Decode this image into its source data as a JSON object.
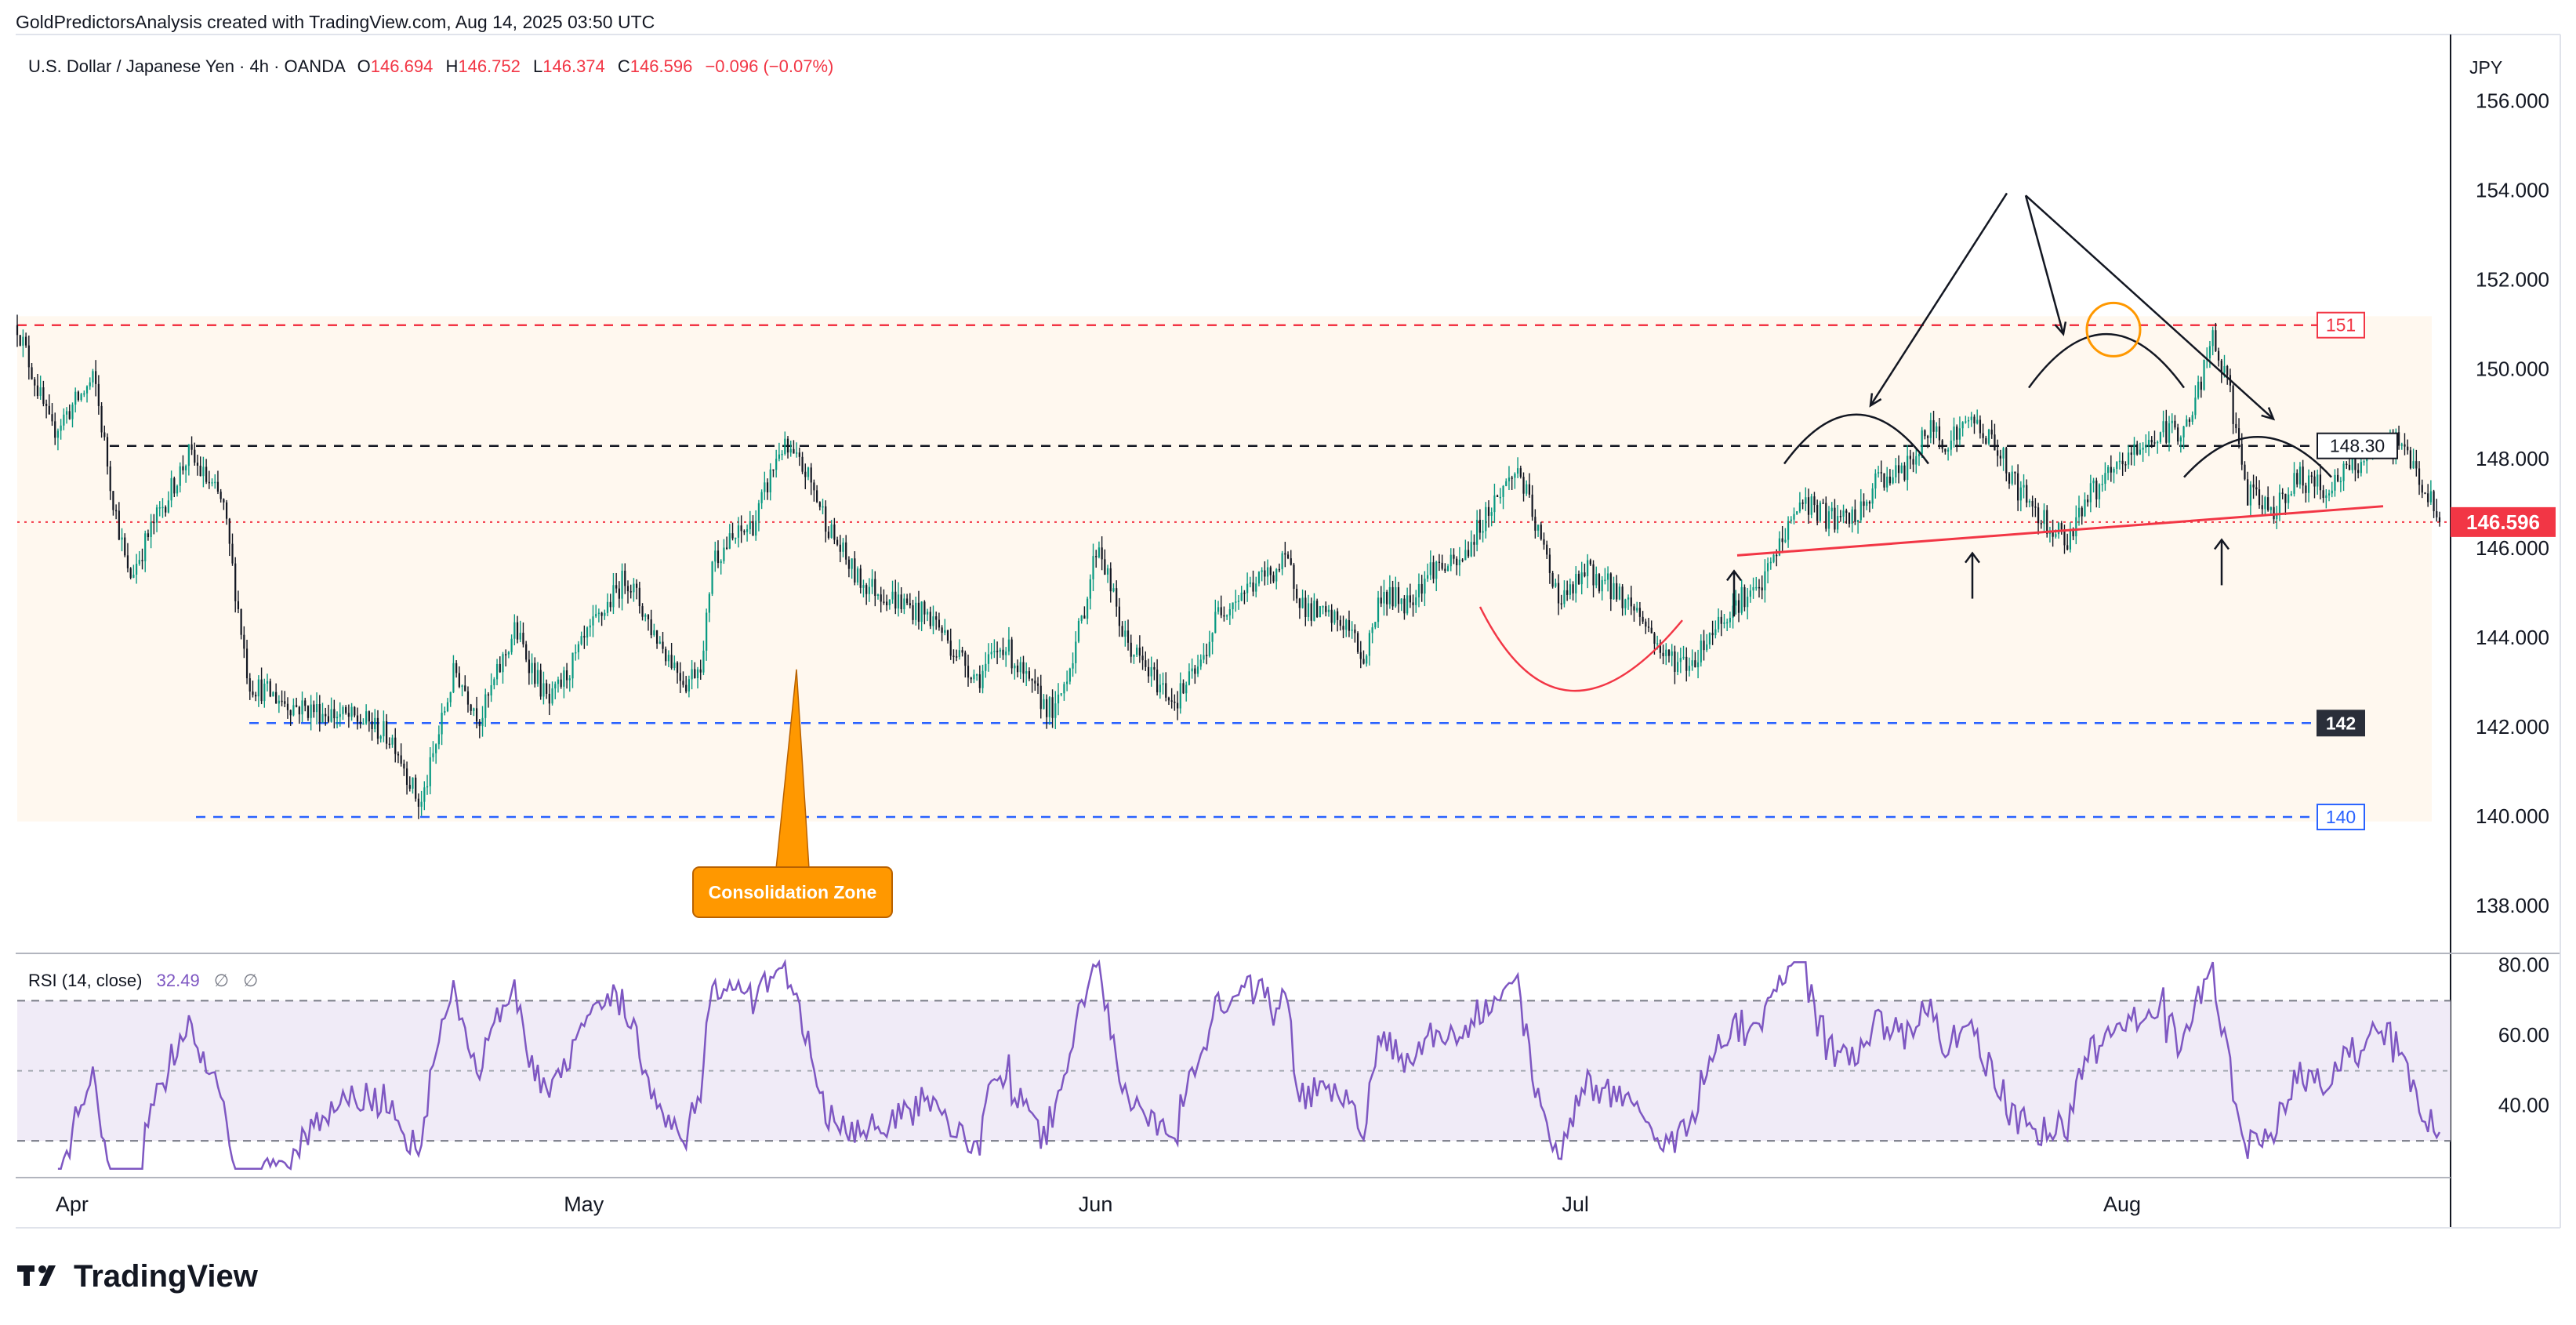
{
  "header": {
    "attribution": "GoldPredictorsAnalysis created with TradingView.com, Aug 14, 2025 03:50 UTC"
  },
  "legend": {
    "symbol": "U.S. Dollar / Japanese Yen · 4h · OANDA",
    "o_label": "O",
    "o_value": "146.694",
    "h_label": "H",
    "h_value": "146.752",
    "l_label": "L",
    "l_value": "146.374",
    "c_label": "C",
    "c_value": "146.596",
    "change": "−0.096 (−0.07%)"
  },
  "currency_label": "JPY",
  "price_axis": {
    "ticks": [
      "156.000",
      "154.000",
      "152.000",
      "150.000",
      "148.000",
      "146.000",
      "144.000",
      "142.000",
      "140.000",
      "138.000"
    ],
    "tick_values": [
      156,
      154,
      152,
      150,
      148,
      146,
      144,
      142,
      140,
      138
    ],
    "range": [
      136.95,
      157.5
    ]
  },
  "level_badges": [
    {
      "label": "151",
      "value": 151.0,
      "style": "red-outline"
    },
    {
      "label": "148.30",
      "value": 148.3,
      "style": "dark-outline"
    },
    {
      "label": "146.596",
      "value": 146.596,
      "style": "red-fill"
    },
    {
      "label": "142",
      "value": 142.1,
      "style": "dark-fill"
    },
    {
      "label": "140",
      "value": 140.0,
      "style": "blue-outline"
    }
  ],
  "annotation": {
    "consolidation_label": "Consolidation Zone"
  },
  "time_axis": {
    "labels": [
      "Apr",
      "May",
      "Jun",
      "Jul",
      "Aug"
    ],
    "bar_index": [
      4,
      180,
      356,
      521,
      709
    ]
  },
  "rsi": {
    "title": "RSI (14, close)",
    "value": "32.49",
    "extra1": "∅",
    "extra2": "∅",
    "ticks": [
      "80.00",
      "60.00",
      "40.00"
    ],
    "tick_values": [
      80,
      60,
      40
    ],
    "range": [
      19.5,
      83.5
    ],
    "band": [
      30,
      70
    ],
    "mid": 50
  },
  "brand": {
    "name": "TradingView"
  },
  "colors": {
    "up": "#089981",
    "down": "#131722",
    "red_level": "#f23645",
    "blue_level": "#2962ff",
    "rsi_line": "#7e57c2",
    "zone": "#fff8ef",
    "orange": "#ff9800"
  },
  "chart_data": {
    "type": "candlestick",
    "title": "U.S. Dollar / Japanese Yen · 4h · OANDA",
    "timeframe": "4h",
    "bars_total": 834,
    "ohlc_last": {
      "open": 146.694,
      "high": 146.752,
      "low": 146.374,
      "close": 146.596,
      "change": -0.096,
      "change_pct": -0.07
    },
    "close_path": [
      [
        0,
        151.0
      ],
      [
        20,
        148.6
      ],
      [
        45,
        149.8
      ],
      [
        55,
        147.3
      ],
      [
        65,
        145.3
      ],
      [
        80,
        146.6
      ],
      [
        100,
        148.1
      ],
      [
        120,
        147.0
      ],
      [
        135,
        143.0
      ],
      [
        160,
        142.5
      ],
      [
        185,
        142.3
      ],
      [
        205,
        142.1
      ],
      [
        220,
        141.7
      ],
      [
        235,
        140.2
      ],
      [
        255,
        143.3
      ],
      [
        270,
        142.2
      ],
      [
        290,
        144.2
      ],
      [
        310,
        142.5
      ],
      [
        335,
        144.2
      ],
      [
        355,
        145.4
      ],
      [
        370,
        144.2
      ],
      [
        390,
        143.0
      ],
      [
        400,
        143.6
      ],
      [
        405,
        145.8
      ],
      [
        430,
        146.6
      ],
      [
        445,
        148.3
      ],
      [
        460,
        147.7
      ],
      [
        475,
        146.3
      ],
      [
        490,
        145.3
      ],
      [
        505,
        145.0
      ],
      [
        520,
        144.7
      ],
      [
        535,
        144.4
      ],
      [
        545,
        143.8
      ],
      [
        560,
        143.1
      ],
      [
        575,
        143.9
      ],
      [
        590,
        142.9
      ],
      [
        605,
        142.3
      ],
      [
        620,
        144.3
      ],
      [
        630,
        146.2
      ],
      [
        645,
        144.0
      ],
      [
        660,
        143.2
      ],
      [
        675,
        142.6
      ],
      [
        690,
        143.4
      ],
      [
        700,
        144.6
      ],
      [
        720,
        145.2
      ],
      [
        740,
        145.7
      ],
      [
        750,
        144.7
      ],
      [
        760,
        144.5
      ],
      [
        775,
        144.3
      ],
      [
        785,
        143.5
      ],
      [
        795,
        145.0
      ],
      [
        810,
        144.8
      ],
      [
        825,
        145.6
      ],
      [
        840,
        145.6
      ],
      [
        855,
        146.7
      ],
      [
        865,
        147.3
      ],
      [
        875,
        147.8
      ],
      [
        885,
        146.5
      ],
      [
        900,
        144.8
      ],
      [
        915,
        145.5
      ],
      [
        930,
        145.1
      ],
      [
        945,
        144.6
      ],
      [
        960,
        143.6
      ],
      [
        975,
        143.4
      ],
      [
        990,
        144.3
      ],
      [
        1005,
        144.9
      ],
      [
        1015,
        145.0
      ],
      [
        1025,
        145.9
      ],
      [
        1040,
        147.1
      ],
      [
        1055,
        146.7
      ],
      [
        1065,
        146.6
      ],
      [
        1075,
        146.8
      ],
      [
        1085,
        147.6
      ],
      [
        1100,
        147.7
      ],
      [
        1115,
        148.7
      ],
      [
        1125,
        148.4
      ],
      [
        1140,
        148.9
      ],
      [
        1155,
        148.2
      ],
      [
        1165,
        147.4
      ],
      [
        1180,
        146.7
      ],
      [
        1195,
        146.2
      ],
      [
        1205,
        147.1
      ],
      [
        1220,
        147.6
      ],
      [
        1235,
        148.2
      ],
      [
        1250,
        148.6
      ],
      [
        1265,
        148.7
      ],
      [
        1280,
        150.7
      ],
      [
        1290,
        149.4
      ],
      [
        1300,
        147.2
      ],
      [
        1315,
        146.9
      ],
      [
        1330,
        147.6
      ],
      [
        1345,
        147.3
      ],
      [
        1360,
        147.8
      ],
      [
        1375,
        148.2
      ],
      [
        1390,
        148.4
      ],
      [
        1405,
        147.2
      ],
      [
        1412,
        146.6
      ]
    ],
    "levels": [
      {
        "label": "151",
        "value": 151.0
      },
      {
        "label": "148.30",
        "value": 148.3
      },
      {
        "label": "142",
        "value": 142.1
      },
      {
        "label": "140",
        "value": 140.0
      },
      {
        "label": "146.596",
        "value": 146.596
      }
    ],
    "consolidation_zone": {
      "from": 139.9,
      "to": 151.2,
      "label": "Consolidation Zone"
    },
    "rsi": {
      "period": 14,
      "source": "close",
      "last": 32.49,
      "band": [
        30,
        70
      ],
      "range_shown": [
        80,
        40
      ]
    },
    "x_labels": [
      "Apr",
      "May",
      "Jun",
      "Jul",
      "Aug"
    ]
  }
}
